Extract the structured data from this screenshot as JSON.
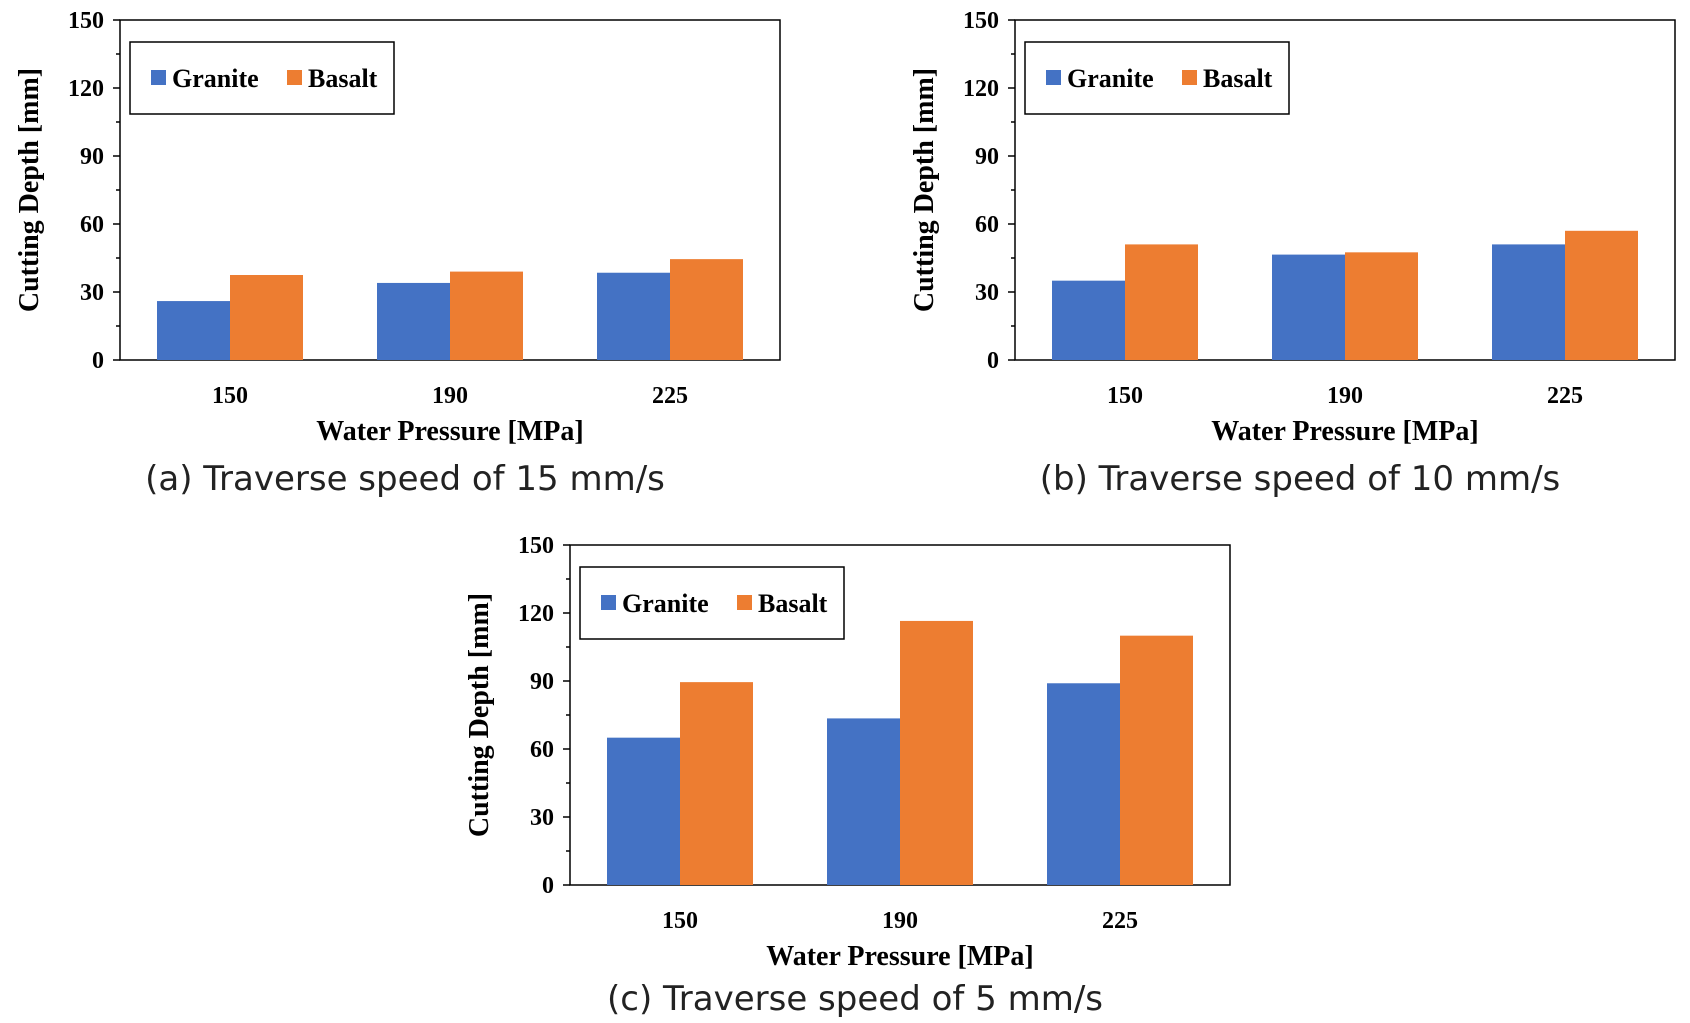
{
  "chart_data": [
    {
      "id": "a",
      "type": "bar",
      "caption": "(a) Traverse speed of 15 mm/s",
      "xlabel": "Water Pressure [MPa]",
      "ylabel": "Cutting Depth [mm]",
      "categories": [
        "150",
        "190",
        "225"
      ],
      "ylim": [
        0,
        150
      ],
      "yticks": [
        0,
        30,
        60,
        90,
        120,
        150
      ],
      "grid": false,
      "legend_position": "top-left",
      "series": [
        {
          "name": "Granite",
          "color": "#4472C4",
          "values": [
            26,
            34,
            38.5
          ]
        },
        {
          "name": "Basalt",
          "color": "#ED7D31",
          "values": [
            37.5,
            39,
            44.5
          ]
        }
      ]
    },
    {
      "id": "b",
      "type": "bar",
      "caption": "(b) Traverse speed of 10 mm/s",
      "xlabel": "Water Pressure [MPa]",
      "ylabel": "Cutting Depth [mm]",
      "categories": [
        "150",
        "190",
        "225"
      ],
      "ylim": [
        0,
        150
      ],
      "yticks": [
        0,
        30,
        60,
        90,
        120,
        150
      ],
      "grid": false,
      "legend_position": "top-left",
      "series": [
        {
          "name": "Granite",
          "color": "#4472C4",
          "values": [
            35,
            46.5,
            51
          ]
        },
        {
          "name": "Basalt",
          "color": "#ED7D31",
          "values": [
            51,
            47.5,
            57
          ]
        }
      ]
    },
    {
      "id": "c",
      "type": "bar",
      "caption": "(c) Traverse speed of 5 mm/s",
      "xlabel": "Water Pressure [MPa]",
      "ylabel": "Cutting Depth [mm]",
      "categories": [
        "150",
        "190",
        "225"
      ],
      "ylim": [
        0,
        150
      ],
      "yticks": [
        0,
        30,
        60,
        90,
        120,
        150
      ],
      "grid": false,
      "legend_position": "top-left",
      "series": [
        {
          "name": "Granite",
          "color": "#4472C4",
          "values": [
            65,
            73.5,
            89
          ]
        },
        {
          "name": "Basalt",
          "color": "#ED7D31",
          "values": [
            89.5,
            116.5,
            110
          ]
        }
      ]
    }
  ]
}
